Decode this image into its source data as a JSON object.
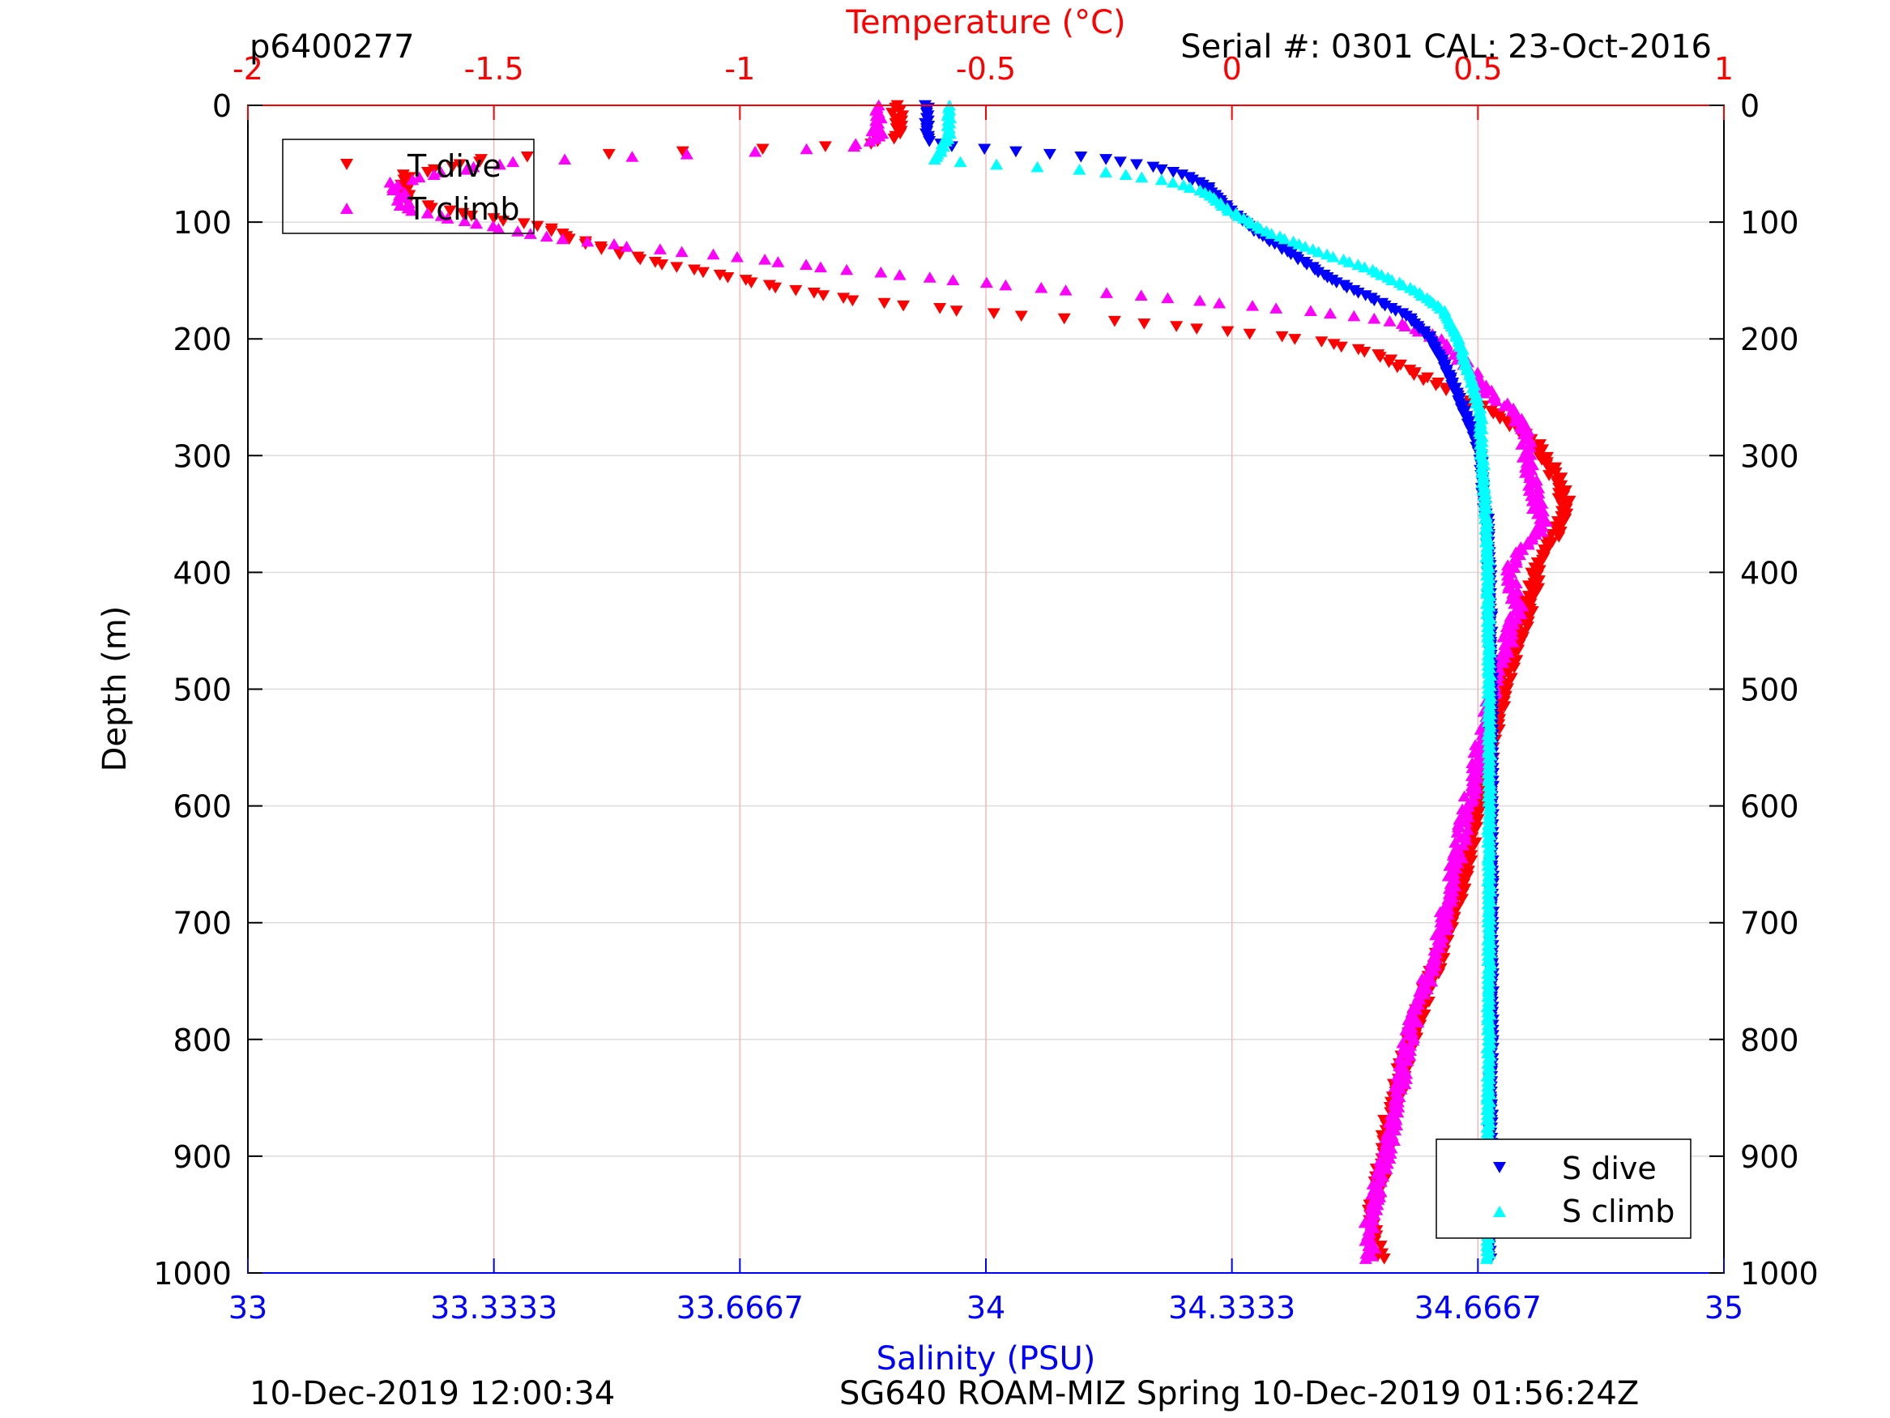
{
  "header": {
    "profile_id": "p6400277",
    "serial": "Serial #: 0301  CAL: 23-Oct-2016"
  },
  "footer": {
    "left": "10-Dec-2019 12:00:34",
    "right": "SG640 ROAM-MIZ Spring 10-Dec-2019 01:56:24Z"
  },
  "colors": {
    "t_dive": "#ff0000",
    "t_climb": "#ff00ff",
    "s_dive": "#0000ff",
    "s_climb": "#00ffff",
    "temp_axis": "#ff0000",
    "sal_axis": "#0000ff",
    "grid_depth": "#dcdcdc",
    "grid_temp": "#f4b8b8"
  },
  "chart_data": {
    "type": "scatter",
    "ylabel": "Depth (m)",
    "ylim": [
      0,
      1000
    ],
    "y_reversed": true,
    "y_ticks": [
      "0",
      "100",
      "200",
      "300",
      "400",
      "500",
      "600",
      "700",
      "800",
      "900",
      "1000"
    ],
    "x_top": {
      "label": "Temperature (°C)",
      "lim": [
        -2,
        1
      ],
      "ticks": [
        "-2",
        "-1.5",
        "-1",
        "-0.5",
        "0",
        "0.5",
        "1"
      ]
    },
    "x_bottom": {
      "label": "Salinity (PSU)",
      "lim": [
        33,
        35
      ],
      "ticks": [
        "33",
        "33.3333",
        "33.6667",
        "34",
        "34.3333",
        "34.6667",
        "35"
      ]
    },
    "legend_temperature": {
      "placement": "top-left",
      "entries": [
        "T dive",
        "T climb"
      ]
    },
    "legend_salinity": {
      "placement": "bottom-right",
      "entries": [
        "S dive",
        "S climb"
      ]
    },
    "series": [
      {
        "name": "T dive",
        "axis": "temperature",
        "marker": "triangle-down",
        "color": "#ff0000",
        "points": [
          [
            -0.68,
            0
          ],
          [
            -0.68,
            28
          ],
          [
            -0.75,
            34
          ],
          [
            -1.0,
            38
          ],
          [
            -1.5,
            45
          ],
          [
            -1.68,
            60
          ],
          [
            -1.68,
            82
          ],
          [
            -1.62,
            88
          ],
          [
            -1.55,
            94
          ],
          [
            -1.4,
            104
          ],
          [
            -1.3,
            120
          ],
          [
            -1.2,
            132
          ],
          [
            -1.05,
            145
          ],
          [
            -0.9,
            158
          ],
          [
            -0.75,
            168
          ],
          [
            -0.55,
            176
          ],
          [
            -0.4,
            181
          ],
          [
            -0.2,
            186
          ],
          [
            -0.05,
            192
          ],
          [
            0.1,
            198
          ],
          [
            0.22,
            205
          ],
          [
            0.3,
            215
          ],
          [
            0.38,
            232
          ],
          [
            0.47,
            250
          ],
          [
            0.55,
            268
          ],
          [
            0.62,
            292
          ],
          [
            0.66,
            320
          ],
          [
            0.68,
            345
          ],
          [
            0.65,
            372
          ],
          [
            0.62,
            395
          ],
          [
            0.61,
            420
          ],
          [
            0.58,
            460
          ],
          [
            0.55,
            500
          ],
          [
            0.52,
            560
          ],
          [
            0.5,
            600
          ],
          [
            0.47,
            660
          ],
          [
            0.43,
            720
          ],
          [
            0.38,
            780
          ],
          [
            0.35,
            820
          ],
          [
            0.32,
            870
          ],
          [
            0.3,
            920
          ],
          [
            0.28,
            960
          ],
          [
            0.3,
            990
          ]
        ]
      },
      {
        "name": "T climb",
        "axis": "temperature",
        "marker": "triangle-up",
        "color": "#ff00ff",
        "points": [
          [
            -0.72,
            0
          ],
          [
            -0.72,
            28
          ],
          [
            -0.78,
            36
          ],
          [
            -1.0,
            40
          ],
          [
            -1.45,
            48
          ],
          [
            -1.6,
            57
          ],
          [
            -1.7,
            66
          ],
          [
            -1.68,
            88
          ],
          [
            -1.6,
            96
          ],
          [
            -1.5,
            104
          ],
          [
            -1.4,
            112
          ],
          [
            -1.2,
            122
          ],
          [
            -1.0,
            130
          ],
          [
            -0.8,
            140
          ],
          [
            -0.55,
            150
          ],
          [
            -0.35,
            158
          ],
          [
            -0.15,
            164
          ],
          [
            0.05,
            172
          ],
          [
            0.2,
            178
          ],
          [
            0.32,
            184
          ],
          [
            0.4,
            196
          ],
          [
            0.45,
            210
          ],
          [
            0.48,
            225
          ],
          [
            0.52,
            245
          ],
          [
            0.57,
            260
          ],
          [
            0.6,
            280
          ],
          [
            0.6,
            310
          ],
          [
            0.62,
            340
          ],
          [
            0.63,
            360
          ],
          [
            0.58,
            385
          ],
          [
            0.56,
            400
          ],
          [
            0.58,
            430
          ],
          [
            0.56,
            460
          ],
          [
            0.53,
            500
          ],
          [
            0.5,
            560
          ],
          [
            0.48,
            600
          ],
          [
            0.45,
            660
          ],
          [
            0.42,
            720
          ],
          [
            0.37,
            780
          ],
          [
            0.35,
            820
          ],
          [
            0.33,
            870
          ],
          [
            0.3,
            920
          ],
          [
            0.28,
            960
          ],
          [
            0.28,
            990
          ]
        ]
      },
      {
        "name": "S dive",
        "axis": "salinity",
        "marker": "triangle-down",
        "color": "#0000ff",
        "points": [
          [
            33.92,
            0
          ],
          [
            33.92,
            30
          ],
          [
            33.95,
            35
          ],
          [
            34.05,
            40
          ],
          [
            34.15,
            45
          ],
          [
            34.22,
            52
          ],
          [
            34.27,
            60
          ],
          [
            34.3,
            70
          ],
          [
            34.33,
            90
          ],
          [
            34.37,
            110
          ],
          [
            34.42,
            130
          ],
          [
            34.47,
            150
          ],
          [
            34.52,
            165
          ],
          [
            34.57,
            180
          ],
          [
            34.6,
            198
          ],
          [
            34.62,
            220
          ],
          [
            34.64,
            250
          ],
          [
            34.66,
            280
          ],
          [
            34.67,
            300
          ],
          [
            34.675,
            340
          ],
          [
            34.68,
            360
          ],
          [
            34.682,
            400
          ],
          [
            34.685,
            500
          ],
          [
            34.685,
            600
          ],
          [
            34.685,
            800
          ],
          [
            34.682,
            990
          ]
        ]
      },
      {
        "name": "S climb",
        "axis": "salinity",
        "marker": "triangle-up",
        "color": "#00ffff",
        "points": [
          [
            33.95,
            0
          ],
          [
            33.95,
            25
          ],
          [
            33.93,
            47
          ],
          [
            34.05,
            52
          ],
          [
            34.15,
            56
          ],
          [
            34.25,
            65
          ],
          [
            34.3,
            75
          ],
          [
            34.33,
            90
          ],
          [
            34.38,
            108
          ],
          [
            34.45,
            125
          ],
          [
            34.52,
            140
          ],
          [
            34.58,
            158
          ],
          [
            34.62,
            175
          ],
          [
            34.64,
            200
          ],
          [
            34.65,
            220
          ],
          [
            34.66,
            240
          ],
          [
            34.67,
            265
          ],
          [
            34.672,
            300
          ],
          [
            34.675,
            330
          ],
          [
            34.678,
            360
          ],
          [
            34.68,
            400
          ],
          [
            34.682,
            500
          ],
          [
            34.682,
            700
          ],
          [
            34.68,
            990
          ]
        ]
      }
    ]
  }
}
